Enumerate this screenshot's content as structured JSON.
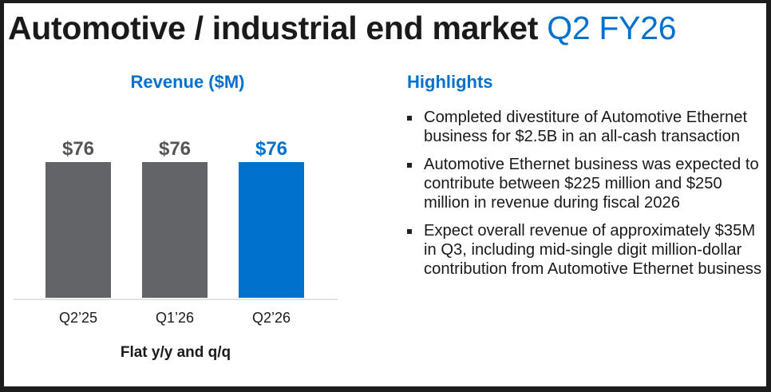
{
  "slide": {
    "title_main": "Automotive / industrial end market",
    "title_accent": "Q2 FY26",
    "colors": {
      "accent": "#0071cd",
      "bar_gray": "#636467",
      "text": "#1a1a1a"
    }
  },
  "chart_data": {
    "type": "bar",
    "title": "Revenue ($M)",
    "categories": [
      "Q2’25",
      "Q1’26",
      "Q2’26"
    ],
    "values": [
      76,
      76,
      76
    ],
    "data_labels": [
      "$76",
      "$76",
      "$76"
    ],
    "bar_colors": [
      "#636467",
      "#636467",
      "#0071cd"
    ],
    "label_colors": [
      "#555555",
      "#555555",
      "#0071cd"
    ],
    "xlabel": "",
    "ylabel": "",
    "ylim": [
      0,
      76
    ],
    "grid": false,
    "footnote": "Flat y/y and q/q"
  },
  "highlights": {
    "title": "Highlights",
    "items": [
      "Completed divestiture of Automotive Ethernet business for $2.5B in an all-cash transaction",
      "Automotive Ethernet business was expected to contribute between $225 million and $250 million in revenue during fiscal 2026",
      "Expect overall revenue of approximately $35M in Q3, including mid-single digit million-dollar contribution from Automotive Ethernet business"
    ]
  }
}
